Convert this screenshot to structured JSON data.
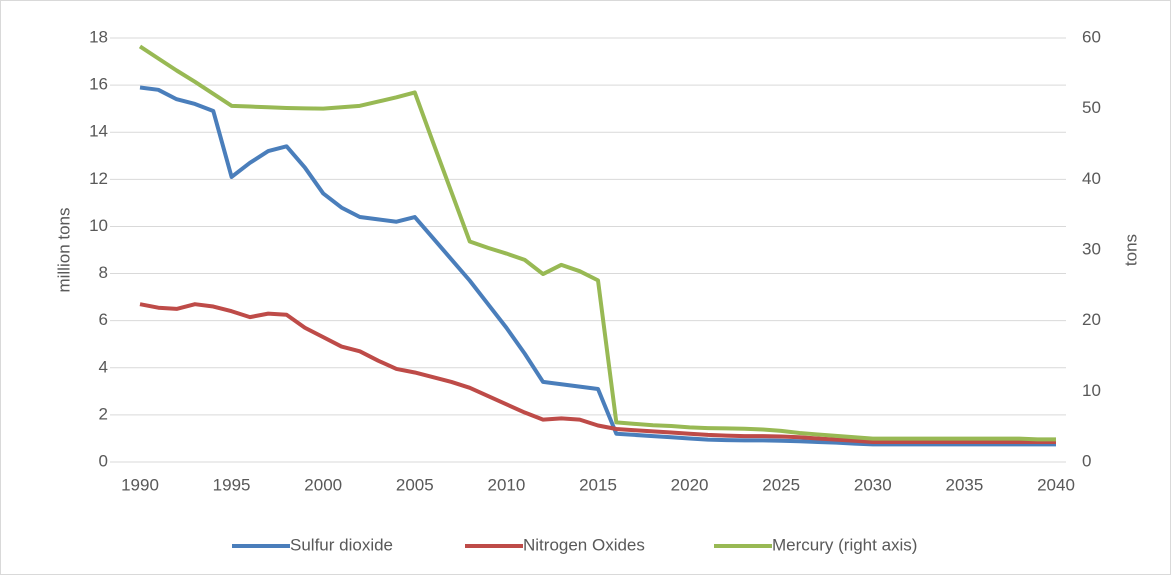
{
  "chart_data": {
    "type": "line",
    "x": [
      1990,
      1991,
      1992,
      1993,
      1994,
      1995,
      1996,
      1997,
      1998,
      1999,
      2000,
      2001,
      2002,
      2003,
      2004,
      2005,
      2006,
      2007,
      2008,
      2009,
      2010,
      2011,
      2012,
      2013,
      2014,
      2015,
      2016,
      2017,
      2018,
      2019,
      2020,
      2021,
      2022,
      2023,
      2024,
      2025,
      2026,
      2027,
      2028,
      2029,
      2030,
      2031,
      2032,
      2033,
      2034,
      2035,
      2036,
      2037,
      2038,
      2039,
      2040
    ],
    "xlim": [
      1990,
      2040
    ],
    "xticks": [
      1990,
      1995,
      2000,
      2005,
      2010,
      2015,
      2020,
      2025,
      2030,
      2035,
      2040
    ],
    "ylabel": "million tons",
    "ylim": [
      0,
      18
    ],
    "yticks": [
      0,
      2,
      4,
      6,
      8,
      10,
      12,
      14,
      16,
      18
    ],
    "y2label": "tons",
    "y2lim": [
      0,
      60
    ],
    "y2ticks": [
      0,
      10,
      20,
      30,
      40,
      50,
      60
    ],
    "grid": true,
    "legend": "bottom",
    "series": [
      {
        "name": "Sulfur dioxide",
        "color": "#4a7ebb",
        "values": [
          15.9,
          15.8,
          15.4,
          15.2,
          14.9,
          12.1,
          12.7,
          13.2,
          13.4,
          12.5,
          11.4,
          10.8,
          10.4,
          10.3,
          10.2,
          10.4,
          9.5,
          8.6,
          7.7,
          6.7,
          5.7,
          4.6,
          3.4,
          3.3,
          3.2,
          3.1,
          1.2,
          1.15,
          1.1,
          1.05,
          1.0,
          0.95,
          0.93,
          0.92,
          0.92,
          0.9,
          0.88,
          0.85,
          0.82,
          0.78,
          0.75,
          0.75,
          0.75,
          0.75,
          0.75,
          0.75,
          0.75,
          0.75,
          0.75,
          0.75,
          0.75
        ]
      },
      {
        "name": "Nitrogen Oxides",
        "color": "#be4b48",
        "values": [
          6.7,
          6.55,
          6.5,
          6.7,
          6.6,
          6.4,
          6.15,
          6.3,
          6.25,
          5.7,
          5.3,
          4.9,
          4.7,
          4.3,
          3.95,
          3.8,
          3.6,
          3.4,
          3.15,
          2.8,
          2.45,
          2.1,
          1.8,
          1.85,
          1.8,
          1.55,
          1.4,
          1.35,
          1.3,
          1.25,
          1.2,
          1.15,
          1.12,
          1.1,
          1.1,
          1.08,
          1.05,
          1.0,
          0.95,
          0.9,
          0.85,
          0.85,
          0.85,
          0.85,
          0.85,
          0.85,
          0.85,
          0.85,
          0.85,
          0.85,
          0.85
        ]
      },
      {
        "name": "Mercury (right axis)",
        "color": "#98b954",
        "axis": "y2",
        "values": [
          58.8,
          57.1,
          55.4,
          53.8,
          52.1,
          50.4,
          50.3,
          50.2,
          50.1,
          50.05,
          50.0,
          50.2,
          50.4,
          51.0,
          51.6,
          52.3,
          45.2,
          38.2,
          31.2,
          30.3,
          29.5,
          28.6,
          26.6,
          27.9,
          27.0,
          25.7,
          5.6,
          5.4,
          5.2,
          5.1,
          4.9,
          4.8,
          4.75,
          4.7,
          4.6,
          4.4,
          4.1,
          3.9,
          3.7,
          3.5,
          3.3,
          3.3,
          3.3,
          3.3,
          3.3,
          3.3,
          3.3,
          3.3,
          3.3,
          3.2,
          3.2
        ]
      }
    ]
  }
}
